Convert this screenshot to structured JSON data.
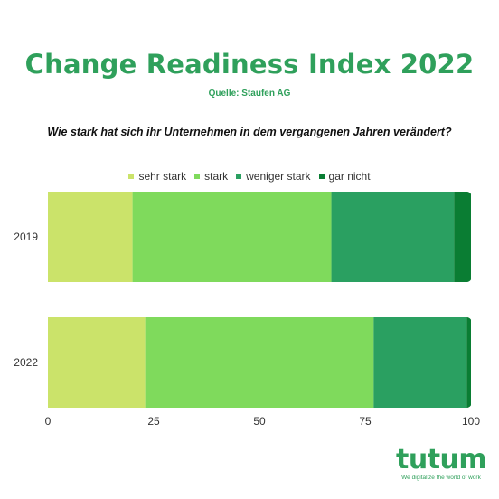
{
  "header": {
    "title": "Change Readiness Index 2022",
    "source": "Quelle: Staufen AG",
    "question": "Wie stark hat sich ihr Unternehmen in dem vergangenen Jahren verändert?"
  },
  "chart_data": {
    "type": "bar",
    "orientation": "horizontal",
    "stacked": true,
    "categories": [
      "2019",
      "2022"
    ],
    "series": [
      {
        "name": "sehr stark",
        "values": [
          20,
          23
        ],
        "color": "#cbe36a"
      },
      {
        "name": "stark",
        "values": [
          47,
          54
        ],
        "color": "#7fda5c"
      },
      {
        "name": "weniger stark",
        "values": [
          29,
          22
        ],
        "color": "#2aa061"
      },
      {
        "name": "gar nicht",
        "values": [
          4,
          1
        ],
        "color": "#0a7d33"
      }
    ],
    "xlim": [
      0,
      100
    ],
    "xticks": [
      "0",
      "25",
      "50",
      "75",
      "100"
    ],
    "legend_position": "top-center",
    "grid": false
  },
  "logo": {
    "brand": "tutum",
    "registered": "®",
    "tagline": "We digitalize the world of work",
    "color": "#2fa05b"
  }
}
